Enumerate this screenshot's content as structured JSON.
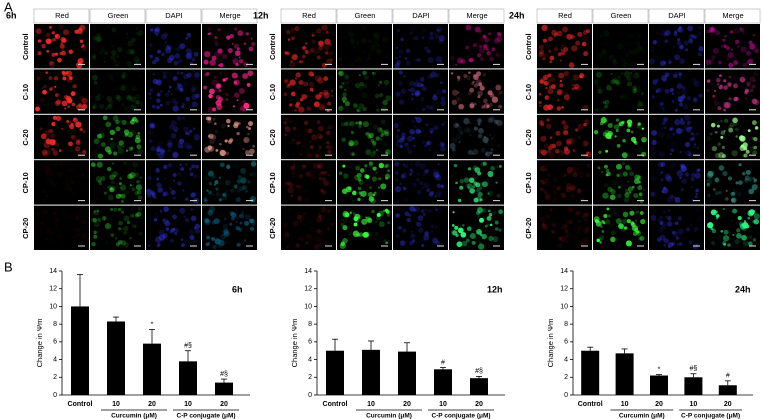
{
  "panel_a": {
    "label": "A",
    "blocks": [
      {
        "time": "6h",
        "columns": [
          "Red",
          "Green",
          "DAPI",
          "Merge"
        ],
        "rows": [
          "Control",
          "C-10",
          "C-20",
          "CP-10",
          "CP-20"
        ]
      },
      {
        "time": "12h",
        "columns": [
          "Red",
          "Green",
          "DAPI",
          "Merge"
        ],
        "rows": [
          "Control",
          "C-10",
          "C-20",
          "CP-10",
          "CP-20"
        ]
      },
      {
        "time": "24h",
        "columns": [
          "Red",
          "Green",
          "DAPI",
          "Merge"
        ],
        "rows": [
          "Control",
          "C-10",
          "C-20",
          "CP-10",
          "CP-20"
        ]
      }
    ]
  },
  "panel_b_label": "B",
  "chart_data": [
    {
      "type": "bar",
      "title": "6h",
      "y_label": "Change in Ψm",
      "categories": [
        "Control",
        "10",
        "20",
        "10",
        "20"
      ],
      "group_labels": [
        "Curcumin (μM)",
        "C-P conjugate (μM)"
      ],
      "values": [
        10,
        8.3,
        5.8,
        3.8,
        1.4
      ],
      "errors": [
        3.6,
        0.5,
        1.6,
        1.2,
        0.4
      ],
      "annotations": [
        null,
        null,
        "*",
        "#§",
        "#§"
      ],
      "color": "#000000",
      "ylim": [
        0,
        14
      ],
      "yticks": [
        0,
        2,
        4,
        6,
        8,
        10,
        12,
        14
      ]
    },
    {
      "type": "bar",
      "title": "12h",
      "y_label": "Change in Ψm",
      "categories": [
        "Control",
        "10",
        "20",
        "10",
        "20"
      ],
      "group_labels": [
        "Curcumin (μM)",
        "C-P conjugate (μM)"
      ],
      "values": [
        5.0,
        5.1,
        4.9,
        2.9,
        1.9
      ],
      "errors": [
        1.3,
        1.0,
        1.0,
        0.2,
        0.2
      ],
      "annotations": [
        null,
        null,
        null,
        "#",
        "#§"
      ],
      "color": "#000000",
      "ylim": [
        0,
        14
      ],
      "yticks": [
        0,
        2,
        4,
        6,
        8,
        10,
        12,
        14
      ]
    },
    {
      "type": "bar",
      "title": "24h",
      "y_label": "Change in Ψm",
      "categories": [
        "Control",
        "10",
        "20",
        "10",
        "20"
      ],
      "group_labels": [
        "Curcumin (μM)",
        "C-P conjugate (μM)"
      ],
      "values": [
        5.0,
        4.7,
        2.2,
        2.0,
        1.1
      ],
      "errors": [
        0.4,
        0.5,
        0.1,
        0.4,
        0.5
      ],
      "annotations": [
        null,
        null,
        "*",
        "#§",
        "#"
      ],
      "color": "#000000",
      "ylim": [
        0,
        14
      ],
      "yticks": [
        0,
        2,
        4,
        6,
        8,
        10,
        12,
        14
      ]
    }
  ]
}
